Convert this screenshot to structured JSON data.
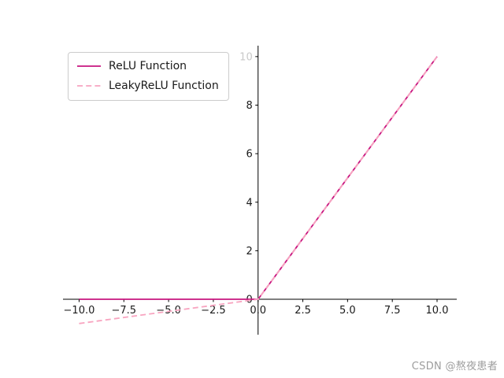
{
  "watermark": {
    "text": "CSDN @熬夜患者",
    "color": "#9d9d9d"
  },
  "chart_data": {
    "type": "line",
    "title": "",
    "xlabel": "",
    "ylabel": "",
    "grid": false,
    "xlim": [
      -10.9,
      11.1
    ],
    "ylim": [
      -1.46,
      10.45
    ],
    "axis_color": "#000000",
    "tick_label_color": "#1a1a1a",
    "muted_tick_color": "#c9c9c9",
    "x_ticks": [
      {
        "v": -10,
        "label": "−10.0"
      },
      {
        "v": -7.5,
        "label": "−7.5"
      },
      {
        "v": -5,
        "label": "−5.0"
      },
      {
        "v": -2.5,
        "label": "−2.5"
      },
      {
        "v": 0,
        "label": "0.0"
      },
      {
        "v": 2.5,
        "label": "2.5"
      },
      {
        "v": 5,
        "label": "5.0"
      },
      {
        "v": 7.5,
        "label": "7.5"
      },
      {
        "v": 10,
        "label": "10.0"
      }
    ],
    "y_ticks": [
      {
        "v": 0,
        "label": "0"
      },
      {
        "v": 2,
        "label": "2"
      },
      {
        "v": 4,
        "label": "4"
      },
      {
        "v": 6,
        "label": "6"
      },
      {
        "v": 8,
        "label": "8"
      },
      {
        "v": 10,
        "label": "10",
        "muted": true
      }
    ],
    "series": [
      {
        "id": "relu",
        "name": "ReLU Function",
        "color": "#C7157F",
        "style": "solid",
        "x": [
          -10,
          0,
          10
        ],
        "y": [
          0,
          0,
          10
        ]
      },
      {
        "id": "leakyrelu",
        "name": "LeakyReLU Function",
        "color": "#F8A4C0",
        "style": "dashed",
        "x": [
          -10,
          0,
          10
        ],
        "y": [
          -1,
          0,
          10
        ]
      }
    ],
    "legend": {
      "position": "upper left",
      "labels": [
        "ReLU Function",
        "LeakyReLU Function"
      ]
    }
  }
}
